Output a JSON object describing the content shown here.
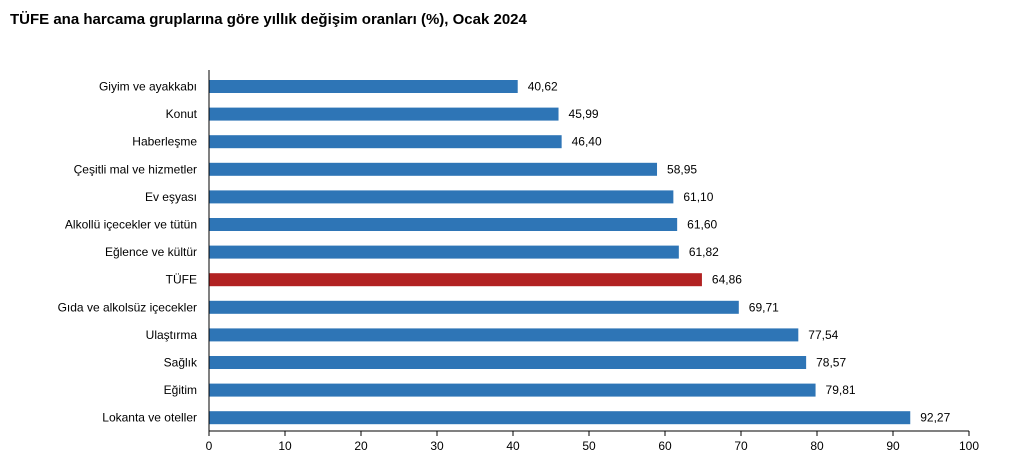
{
  "chart_data": {
    "type": "bar",
    "orientation": "horizontal",
    "title": "TÜFE ana harcama gruplarına göre yıllık değişim oranları (%), Ocak 2024",
    "categories": [
      "Giyim ve ayakkabı",
      "Konut",
      "Haberleşme",
      "Çeşitli mal ve hizmetler",
      "Ev eşyası",
      "Alkollü içecekler ve tütün",
      "Eğlence ve kültür",
      "TÜFE",
      "Gıda ve alkolsüz içecekler",
      "Ulaştırma",
      "Sağlık",
      "Eğitim",
      "Lokanta ve oteller"
    ],
    "values": [
      40.62,
      45.99,
      46.4,
      58.95,
      61.1,
      61.6,
      61.82,
      64.86,
      69.71,
      77.54,
      78.57,
      79.81,
      92.27
    ],
    "value_labels": [
      "40,62",
      "45,99",
      "46,40",
      "58,95",
      "61,10",
      "61,60",
      "61,82",
      "64,86",
      "69,71",
      "77,54",
      "78,57",
      "79,81",
      "92,27"
    ],
    "xlim": [
      0,
      100
    ],
    "xticks": [
      0,
      10,
      20,
      30,
      40,
      50,
      60,
      70,
      80,
      90,
      100
    ],
    "xlabel": "",
    "ylabel": "",
    "grid": false,
    "legend": "none",
    "bar_color": "#2E75B6",
    "highlight_category": "TÜFE",
    "highlight_color": "#B22222"
  }
}
